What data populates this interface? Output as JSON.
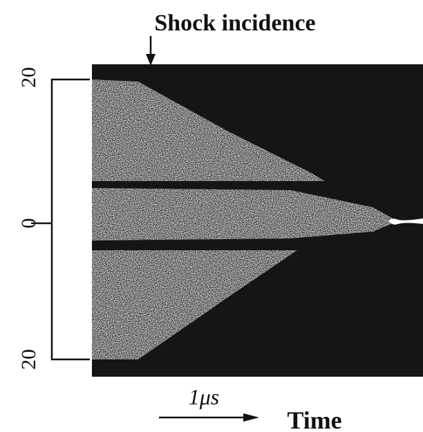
{
  "title": "Shock incidence",
  "y_axis": {
    "ticks": [
      "20",
      "0",
      "20"
    ]
  },
  "scale_bar": {
    "label": "1μs"
  },
  "x_label": "Time"
}
